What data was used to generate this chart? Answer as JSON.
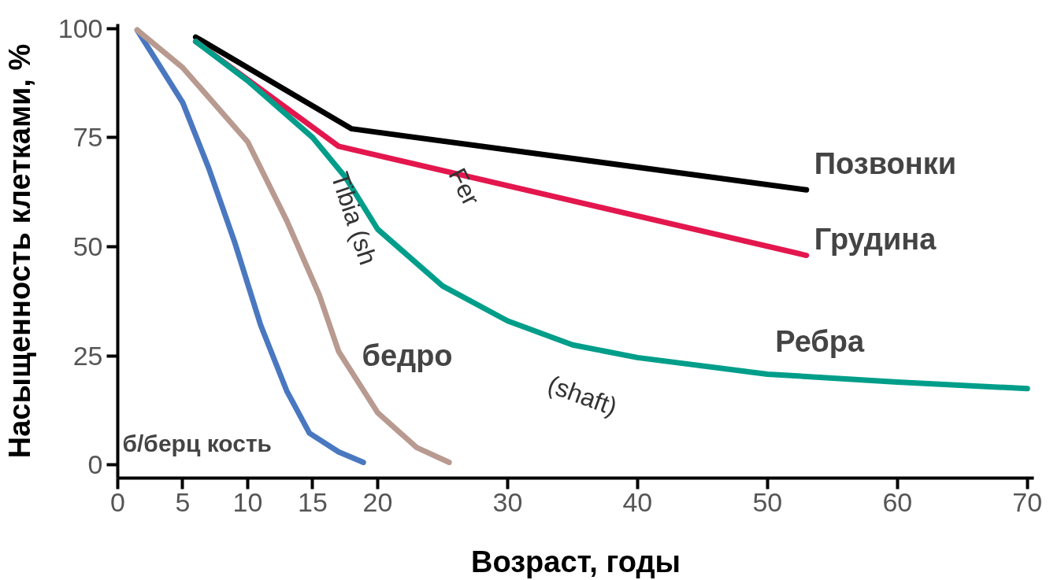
{
  "chart_data": {
    "type": "line",
    "xlabel": "Возраст, годы",
    "ylabel": "Насыщенность клетками, %",
    "xlim": [
      0,
      70.5
    ],
    "ylim": [
      -3,
      101
    ],
    "xticks": [
      0,
      5,
      10,
      15,
      20,
      30,
      40,
      50,
      60,
      70
    ],
    "yticks": [
      0,
      25,
      50,
      75,
      100
    ],
    "grid": false,
    "legend": false,
    "marker": "none",
    "line_style": "solid",
    "series": [
      {
        "name": "Позвонки",
        "color": "#000000",
        "x": [
          6,
          18,
          53
        ],
        "values": [
          98,
          77,
          63
        ]
      },
      {
        "name": "Грудина",
        "color": "#e3174e",
        "x": [
          6,
          17,
          53
        ],
        "values": [
          97,
          73,
          48
        ]
      },
      {
        "name": "Ребра",
        "color": "#009e8a",
        "x": [
          6,
          10,
          15,
          17.5,
          20,
          25,
          30,
          35,
          40,
          50,
          60,
          70
        ],
        "values": [
          97,
          88,
          75,
          66,
          54,
          41,
          33,
          27.5,
          24.6,
          20.8,
          19,
          17.5
        ]
      },
      {
        "name": "б/берц кость",
        "color": "#4a78c0",
        "x": [
          1.5,
          5,
          7,
          9,
          11,
          13,
          14.75,
          17,
          18.9
        ],
        "values": [
          99.6,
          83,
          68,
          51,
          32,
          17,
          7.3,
          3,
          0.6
        ]
      },
      {
        "name": "бедро",
        "color": "#b89a90",
        "x": [
          1.5,
          5,
          10,
          13,
          15.5,
          17,
          20,
          23,
          25.5
        ],
        "values": [
          99.6,
          91,
          74,
          56,
          39,
          26,
          12,
          4,
          0.6
        ]
      }
    ],
    "annotations": [
      "Tibia (sh",
      "Fer",
      "(shaft)"
    ]
  }
}
